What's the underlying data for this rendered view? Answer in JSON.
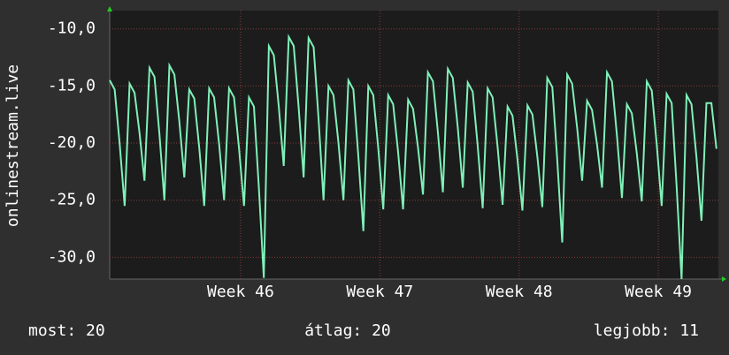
{
  "chart_data": {
    "type": "line",
    "y_label": "onlinestream.live",
    "color": "#7ff0b8",
    "grid": true,
    "x": [
      0,
      0.25,
      0.5,
      0.75,
      1,
      1.25,
      1.5,
      1.75,
      2,
      2.25,
      2.5,
      2.75,
      3,
      3.25,
      3.5,
      3.75,
      4,
      4.25,
      4.5,
      4.75,
      5,
      5.25,
      5.5,
      5.75,
      6,
      6.25,
      6.5,
      6.75,
      7,
      7.25,
      7.5,
      7.75,
      8,
      8.25,
      8.5,
      8.75,
      9,
      9.25,
      9.5,
      9.75,
      10,
      10.25,
      10.5,
      10.75,
      11,
      11.25,
      11.5,
      11.75,
      12,
      12.25,
      12.5,
      12.75,
      13,
      13.25,
      13.5,
      13.75,
      14,
      14.25,
      14.5,
      14.75,
      15,
      15.25,
      15.5,
      15.75,
      16,
      16.25,
      16.5,
      16.75,
      17,
      17.25,
      17.5,
      17.75,
      18,
      18.25,
      18.5,
      18.75,
      19,
      19.25,
      19.5,
      19.75,
      20,
      20.25,
      20.5,
      20.75,
      21,
      21.25,
      21.5,
      21.75,
      22,
      22.25,
      22.5,
      22.75,
      23,
      23.25,
      23.5,
      23.75,
      24,
      24.25,
      24.5,
      24.75,
      25,
      25.25,
      25.5,
      25.75,
      26,
      26.25,
      26.5,
      26.75,
      27,
      27.25,
      27.5,
      27.75,
      28,
      28.25,
      28.5,
      28.75,
      29,
      29.25,
      29.5,
      29.75,
      30,
      30.25,
      30.5
    ],
    "values": [
      -14.5,
      -15.3,
      -20.0,
      -25.5,
      -14.8,
      -15.6,
      -19.1,
      -23.3,
      -13.4,
      -14.2,
      -19.2,
      -25,
      -13.2,
      -14.0,
      -18.1,
      -23,
      -15.3,
      -16.1,
      -20.4,
      -25.5,
      -15.2,
      -16.0,
      -20.1,
      -25,
      -15.2,
      -16.0,
      -20.4,
      -25.5,
      -16,
      -16.8,
      -23.9,
      -31.8,
      -11.5,
      -12.3,
      -16.8,
      -22,
      -10.7,
      -11.5,
      -16.9,
      -23,
      -10.8,
      -11.6,
      -17.9,
      -25,
      -15,
      -15.8,
      -20,
      -25,
      -14.5,
      -15.3,
      -21.1,
      -27.7,
      -15,
      -15.8,
      -20.4,
      -25.8,
      -15.8,
      -16.6,
      -20.8,
      -25.8,
      -16.2,
      -17.0,
      -20.4,
      -24.5,
      -13.8,
      -14.6,
      -19.1,
      -24.3,
      -13.5,
      -14.3,
      -18.7,
      -23.9,
      -14.7,
      -15.5,
      -20.2,
      -25.7,
      -15.2,
      -16.0,
      -20.3,
      -25.4,
      -16.8,
      -17.6,
      -21.4,
      -25.9,
      -16.7,
      -17.5,
      -21.2,
      -25.6,
      -14.3,
      -15.1,
      -21.5,
      -28.7,
      -14,
      -14.8,
      -18.7,
      -23.3,
      -16.3,
      -17.1,
      -20.1,
      -23.9,
      -13.8,
      -14.6,
      -19.3,
      -24.8,
      -16.6,
      -17.4,
      -20.9,
      -25.1,
      -14.6,
      -15.4,
      -20.1,
      -25.5,
      -15.7,
      -16.5,
      -23.8,
      -31.9,
      -15.8,
      -16.6,
      -21.3,
      -26.8,
      -16.5,
      -16.5,
      -20.5
    ],
    "xlim": [
      0,
      30.6
    ],
    "xticks": [
      {
        "value": 6.58,
        "label": "Week 46"
      },
      {
        "value": 13.58,
        "label": "Week 47"
      },
      {
        "value": 20.58,
        "label": "Week 48"
      },
      {
        "value": 27.58,
        "label": "Week 49"
      }
    ],
    "ylim": [
      -31.9,
      -8.4
    ],
    "yticks": [
      {
        "value": -30,
        "label": "-30,0"
      },
      {
        "value": -25,
        "label": "-25,0"
      },
      {
        "value": -20,
        "label": "-20,0"
      },
      {
        "value": -15,
        "label": "-15,0"
      },
      {
        "value": -10,
        "label": "-10,0"
      }
    ],
    "stats": [
      "most: 20",
      "átlag: 20",
      "legjobb: 11"
    ]
  }
}
